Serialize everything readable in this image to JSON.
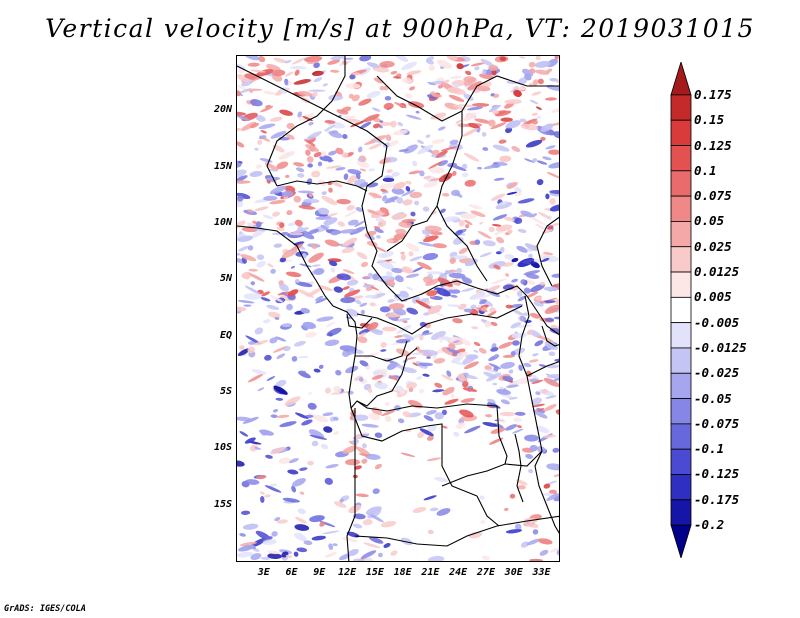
{
  "title": "Vertical velocity [m/s] at 900hPa, VT: 2019031015",
  "credit": "GrADS: IGES/COLA",
  "map": {
    "lon_range": [
      0,
      35
    ],
    "lat_range": [
      -20,
      25
    ],
    "lat_labels": [
      {
        "text": "20N",
        "value": 20
      },
      {
        "text": "15N",
        "value": 15
      },
      {
        "text": "10N",
        "value": 10
      },
      {
        "text": "5N",
        "value": 5
      },
      {
        "text": "EQ",
        "value": 0
      },
      {
        "text": "5S",
        "value": -5
      },
      {
        "text": "10S",
        "value": -10
      },
      {
        "text": "15S",
        "value": -15
      }
    ],
    "lon_labels": [
      {
        "text": "3E",
        "value": 3
      },
      {
        "text": "6E",
        "value": 6
      },
      {
        "text": "9E",
        "value": 9
      },
      {
        "text": "12E",
        "value": 12
      },
      {
        "text": "15E",
        "value": 15
      },
      {
        "text": "18E",
        "value": 18
      },
      {
        "text": "21E",
        "value": 21
      },
      {
        "text": "24E",
        "value": 24
      },
      {
        "text": "27E",
        "value": 27
      },
      {
        "text": "30E",
        "value": 30
      },
      {
        "text": "33E",
        "value": 33
      }
    ]
  },
  "colorbar": {
    "labels": [
      "0.175",
      "0.15",
      "0.125",
      "0.1",
      "0.075",
      "0.05",
      "0.025",
      "0.0125",
      "0.005",
      "-0.005",
      "-0.0125",
      "-0.025",
      "-0.05",
      "-0.075",
      "-0.1",
      "-0.125",
      "-0.175",
      "-0.2"
    ],
    "colors": [
      "#a51a1a",
      "#c42a2a",
      "#d93b3b",
      "#e35151",
      "#ea6b6b",
      "#f08888",
      "#f5a8a8",
      "#f9caca",
      "#fce6e6",
      "#ffffff",
      "#e2e2fb",
      "#c4c4f5",
      "#a6a6ee",
      "#8686e6",
      "#6868dd",
      "#4a4ad2",
      "#2f2fc2",
      "#1515a8",
      "#00008b"
    ]
  }
}
